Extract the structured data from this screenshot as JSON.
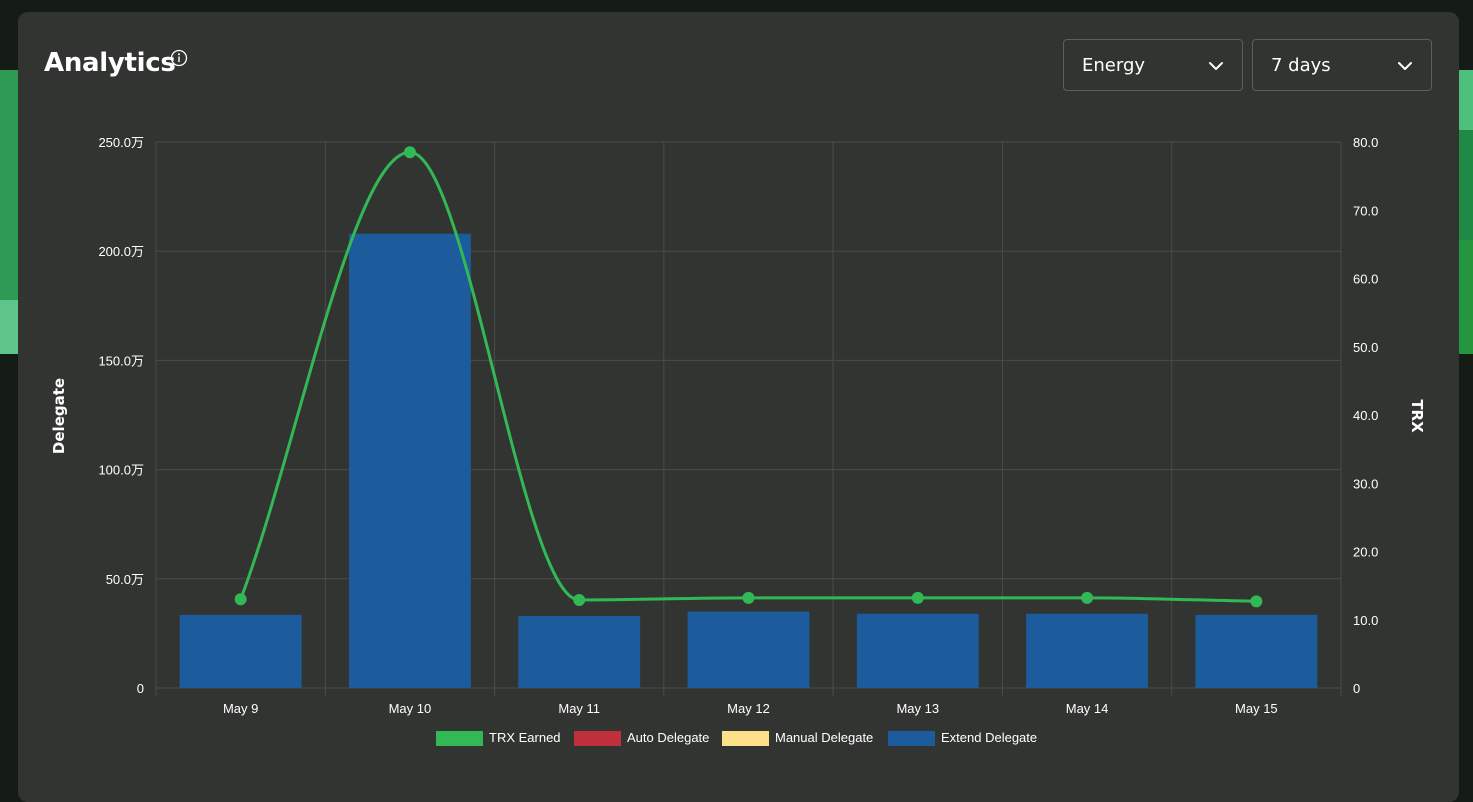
{
  "header": {
    "title": "Analytics",
    "info_icon": "info-icon"
  },
  "controls": {
    "metric_select": {
      "selected": "Energy",
      "icon": "chevron-down-icon"
    },
    "range_select": {
      "selected": "7 days",
      "icon": "chevron-down-icon"
    }
  },
  "colors": {
    "background": "#151b15",
    "card": "#323432",
    "grid": "#4a4d4a",
    "trx_earned": "#32b854",
    "auto_delegate": "#c0303c",
    "manual_delegate": "#fce08a",
    "extend_delegate": "#1d5c9c"
  },
  "chart_data": {
    "type": "bar",
    "categories": [
      "May 9",
      "May 10",
      "May 11",
      "May 12",
      "May 13",
      "May 14",
      "May 15"
    ],
    "y_left": {
      "label": "Delegate",
      "ylim": [
        0,
        2500000
      ],
      "ticks": [
        "0",
        "50.0万",
        "100.0万",
        "150.0万",
        "200.0万",
        "250.0万"
      ]
    },
    "y_right": {
      "label": "TRX",
      "ylim": [
        0,
        80
      ],
      "ticks": [
        "0",
        "10.0",
        "20.0",
        "30.0",
        "40.0",
        "50.0",
        "60.0",
        "70.0",
        "80.0"
      ]
    },
    "series": [
      {
        "name": "TRX Earned",
        "type": "line",
        "axis": "right",
        "values": [
          13.0,
          78.5,
          12.9,
          13.2,
          13.2,
          13.2,
          12.7
        ]
      },
      {
        "name": "Auto Delegate",
        "type": "bar",
        "axis": "left",
        "values": [
          0,
          0,
          0,
          0,
          0,
          0,
          0
        ]
      },
      {
        "name": "Manual Delegate",
        "type": "bar",
        "axis": "left",
        "values": [
          0,
          0,
          0,
          0,
          0,
          0,
          0
        ]
      },
      {
        "name": "Extend Delegate",
        "type": "bar",
        "axis": "left",
        "values": [
          335000,
          2080000,
          330000,
          350000,
          340000,
          340000,
          335000
        ]
      }
    ],
    "grid": true,
    "legend_position": "bottom"
  }
}
